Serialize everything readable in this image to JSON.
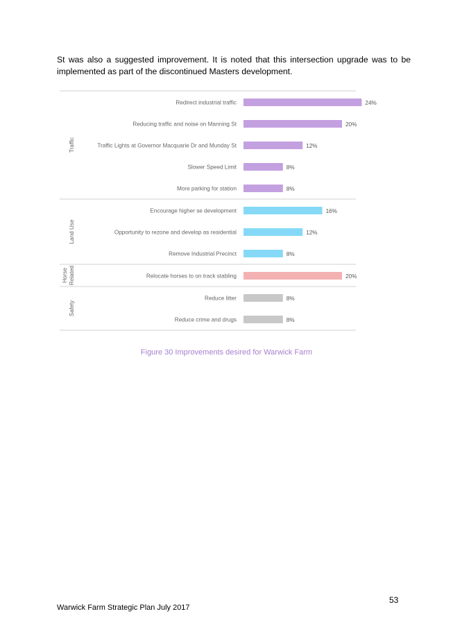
{
  "intro_text": "St was also a suggested improvement. It is noted that this intersection upgrade was to be implemented as part of the discontinued Masters development.",
  "figure_caption": "Figure 30 Improvements desired for Warwick Farm",
  "page_number": "53",
  "footer_text": "Warwick Farm Strategic Plan July 2017",
  "chart_data": {
    "type": "bar",
    "orientation": "horizontal",
    "groups": [
      {
        "name": "Traffic",
        "color": "#c3a0e0",
        "categories": [
          "Redirect industrial traffic",
          "Reducing traffic and noise on Manning St",
          "Traffic Lights at Governor Macquarie Dr and Munday St",
          "Slower Speed Limit",
          "More parking for station"
        ],
        "values": [
          24,
          20,
          12,
          8,
          8
        ]
      },
      {
        "name": "Land Use",
        "color": "#86d9f6",
        "categories": [
          "Encourage higher se development",
          "Opportunity to rezone and develop as residential",
          "Remove Industrial Precinct"
        ],
        "values": [
          16,
          12,
          8
        ]
      },
      {
        "name": "Horse Related",
        "color": "#f4b1b1",
        "categories": [
          "Relocate horses to on track stabling"
        ],
        "values": [
          20
        ]
      },
      {
        "name": "Safety",
        "color": "#c8c8c8",
        "categories": [
          "Reduce litter",
          "Reduce crime and drugs"
        ],
        "values": [
          8,
          8
        ]
      }
    ],
    "value_suffix": "%",
    "grid": false,
    "legend": "none"
  }
}
